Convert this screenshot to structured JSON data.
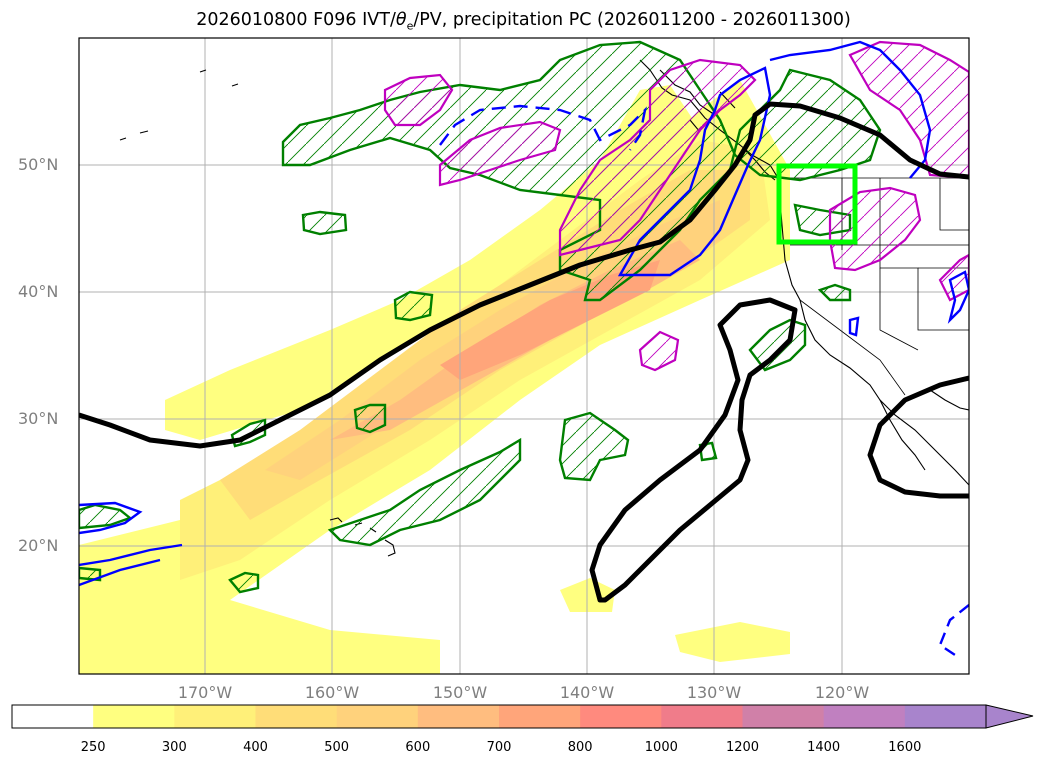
{
  "title": {
    "prefix": "2026010800 F096 IVT/",
    "theta": "θ",
    "sub": "e",
    "suffix": "/PV, precipitation PC (2026011200 - 2026011300)"
  },
  "axes": {
    "lat_labels": [
      "50°N",
      "40°N",
      "30°N",
      "20°N"
    ],
    "lon_labels": [
      "170°W",
      "160°W",
      "150°W",
      "140°W",
      "130°W",
      "120°W"
    ]
  },
  "map": {
    "extent_lon": [
      -180,
      -110
    ],
    "extent_lat": [
      10,
      60
    ],
    "features": [
      "coastlines",
      "political-borders",
      "gridlines"
    ],
    "highlight_box": {
      "lon": [
        -125,
        -119
      ],
      "lat": [
        44,
        50
      ],
      "color": "#00ff00"
    }
  },
  "colorbar": {
    "ticks": [
      "250",
      "300",
      "400",
      "500",
      "600",
      "700",
      "800",
      "1000",
      "1200",
      "1400",
      "1600"
    ],
    "colors": [
      "#ffffff",
      "#ffff80",
      "#fff079",
      "#ffdd78",
      "#ffd27c",
      "#ffbd7f",
      "#ffa57a",
      "#ff8a7e",
      "#f07c8a",
      "#d080a8",
      "#c080c0",
      "#a884cc"
    ],
    "extend": "max"
  },
  "legend_colors": {
    "contour_black": "#000000",
    "contour_green": "#008000",
    "contour_blue": "#0000ff",
    "contour_magenta": "#bf00bf"
  }
}
